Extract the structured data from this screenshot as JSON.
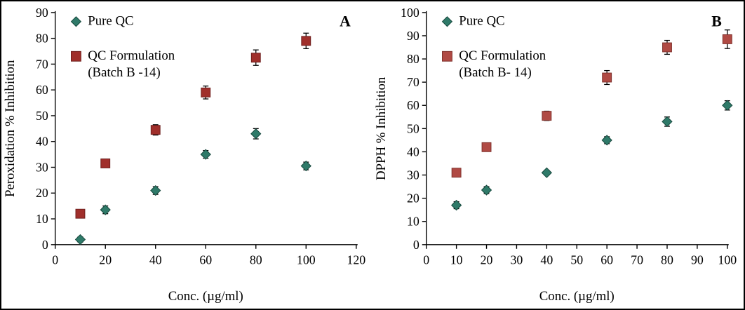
{
  "figure": {
    "background": "#ffffff",
    "border_color": "#000000"
  },
  "chart_data": [
    {
      "type": "scatter",
      "panel_label": "A",
      "xlabel": "Conc. (µg/ml)",
      "ylabel": "Peroxidation % Inhibition",
      "xlim": [
        0,
        120
      ],
      "ylim": [
        0,
        90
      ],
      "xticks": [
        0,
        20,
        40,
        60,
        80,
        100,
        120
      ],
      "yticks": [
        0,
        10,
        20,
        30,
        40,
        50,
        60,
        70,
        80,
        90
      ],
      "grid": false,
      "legend_position": "top-left-inside",
      "series": [
        {
          "name": "Pure QC",
          "label_lines": [
            "Pure QC"
          ],
          "marker": "diamond",
          "fill": "#2F7A69",
          "stroke": "#16473C",
          "x": [
            10,
            20,
            40,
            60,
            80,
            100
          ],
          "y": [
            2,
            13.5,
            21,
            35,
            43,
            30.5
          ],
          "yerr": [
            1,
            1.5,
            1.5,
            1.5,
            2,
            1.5
          ]
        },
        {
          "name": "QC Formulation (Batch B -14)",
          "label_lines": [
            "QC Formulation",
            "(Batch B -14)"
          ],
          "marker": "square",
          "fill": "#A02F2B",
          "stroke": "#6E1F1D",
          "x": [
            10,
            20,
            40,
            60,
            80,
            100
          ],
          "y": [
            12,
            31.5,
            44.5,
            59,
            72.5,
            79
          ],
          "yerr": [
            1,
            1,
            2,
            2.5,
            3,
            3
          ]
        }
      ]
    },
    {
      "type": "scatter",
      "panel_label": "B",
      "xlabel": "Conc. (µg/ml)",
      "ylabel": "DPPH % Inhibition",
      "xlim": [
        0,
        100
      ],
      "ylim": [
        0,
        100
      ],
      "xticks": [
        0,
        10,
        20,
        30,
        40,
        50,
        60,
        70,
        80,
        90,
        100
      ],
      "yticks": [
        0,
        10,
        20,
        30,
        40,
        50,
        60,
        70,
        80,
        90,
        100
      ],
      "grid": false,
      "legend_position": "top-left-inside",
      "series": [
        {
          "name": "Pure QC",
          "label_lines": [
            "Pure QC"
          ],
          "marker": "diamond",
          "fill": "#2F7A69",
          "stroke": "#16473C",
          "x": [
            10,
            20,
            40,
            60,
            80,
            100
          ],
          "y": [
            17,
            23.5,
            31,
            45,
            53,
            60
          ],
          "yerr": [
            1.5,
            1.5,
            1,
            1.5,
            2,
            2
          ]
        },
        {
          "name": "QC Formulation (Batch B- 14)",
          "label_lines": [
            "QC Formulation",
            "(Batch B- 14)"
          ],
          "marker": "square",
          "fill": "#B04A44",
          "stroke": "#7E302B",
          "x": [
            10,
            20,
            40,
            60,
            80,
            100
          ],
          "y": [
            31,
            42,
            55.5,
            72,
            85,
            88.5
          ],
          "yerr": [
            0,
            0,
            2,
            3,
            3,
            4
          ]
        }
      ]
    }
  ]
}
